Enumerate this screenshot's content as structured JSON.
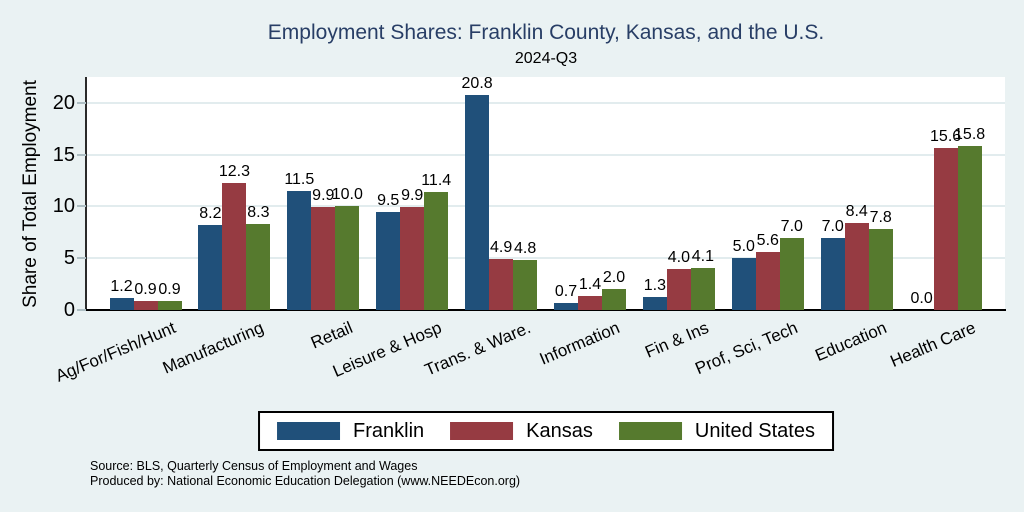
{
  "chart_data": {
    "type": "bar",
    "title": "Employment Shares: Franklin County, Kansas, and the U.S.",
    "subtitle": "2024-Q3",
    "xlabel": "",
    "ylabel": "Share of Total Employment",
    "ylim": [
      0,
      22.5
    ],
    "yticks": [
      0,
      5,
      10,
      15,
      20
    ],
    "grid": true,
    "legend_position": "bottom",
    "categories": [
      "Ag/For/Fish/Hunt",
      "Manufacturing",
      "Retail",
      "Leisure & Hosp",
      "Trans. & Ware.",
      "Information",
      "Fin & Ins",
      "Prof, Sci, Tech",
      "Education",
      "Health Care"
    ],
    "series": [
      {
        "name": "Franklin",
        "color": "#20507a",
        "values": [
          1.2,
          8.2,
          11.5,
          9.5,
          20.8,
          0.7,
          1.3,
          5.0,
          7.0,
          0.0
        ]
      },
      {
        "name": "Kansas",
        "color": "#963b42",
        "values": [
          0.9,
          12.3,
          9.9,
          9.9,
          4.9,
          1.4,
          4.0,
          5.6,
          8.4,
          15.6
        ]
      },
      {
        "name": "United States",
        "color": "#567a2e",
        "values": [
          0.9,
          8.3,
          10.0,
          11.4,
          4.8,
          2.0,
          4.1,
          7.0,
          7.8,
          15.8
        ]
      }
    ],
    "value_label_decimals": 1
  },
  "notes": {
    "source": "Source: BLS, Quarterly Census of Employment and Wages",
    "produced_by": "Produced by: National Economic Education Delegation (www.NEEDEcon.org)"
  },
  "colors": {
    "background": "#eaf2f3",
    "plot_background": "#ffffff",
    "grid": "#e2ecee",
    "tick": "#aebfc4",
    "title_text": "#283e66"
  }
}
